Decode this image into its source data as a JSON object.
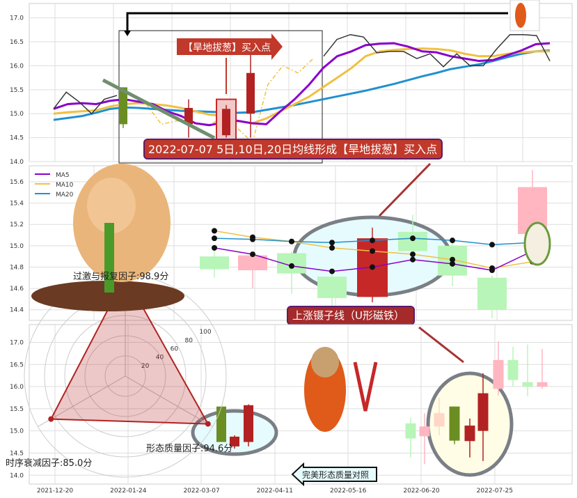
{
  "chart_data": [
    {
      "type": "line",
      "panel": "top",
      "ylim": [
        14.0,
        17.3
      ],
      "yticks": [
        "14.0",
        "14.5",
        "15.0",
        "15.5",
        "16.0",
        "16.5",
        "17.0"
      ],
      "series": [
        {
          "key": "ma5",
          "color": "#8800cc",
          "values": [
            15.1,
            15.2,
            15.22,
            15.2,
            15.27,
            15.3,
            15.25,
            15.2,
            15.05,
            14.95,
            14.8,
            14.76,
            14.82,
            14.85,
            14.8,
            14.78,
            15.05,
            15.3,
            15.6,
            15.95,
            16.2,
            16.3,
            16.43,
            16.46,
            16.47,
            16.4,
            16.3,
            16.28,
            16.2,
            16.15,
            16.1,
            16.12,
            16.22,
            16.32,
            16.45,
            16.47
          ]
        },
        {
          "key": "ma10",
          "color": "#f0c040",
          "values": [
            15.0,
            15.03,
            15.05,
            15.07,
            15.15,
            15.2,
            15.22,
            15.2,
            15.17,
            15.12,
            15.05,
            14.98,
            14.95,
            14.85,
            14.8,
            14.9,
            15.05,
            15.2,
            15.35,
            15.55,
            15.75,
            15.95,
            16.2,
            16.3,
            16.33,
            16.35,
            16.36,
            16.35,
            16.32,
            16.25,
            16.2,
            16.2,
            16.25,
            16.28,
            16.3,
            16.3
          ]
        },
        {
          "key": "ma20",
          "color": "#2090d0",
          "values": [
            14.87,
            14.91,
            14.95,
            15.02,
            15.1,
            15.13,
            15.12,
            15.1,
            15.08,
            15.06,
            15.05,
            15.04,
            15.03,
            15.02,
            15.03,
            15.08,
            15.13,
            15.18,
            15.24,
            15.3,
            15.36,
            15.42,
            15.48,
            15.55,
            15.62,
            15.7,
            15.78,
            15.85,
            15.93,
            15.98,
            16.03,
            16.1,
            16.18,
            16.25,
            16.3,
            16.32
          ]
        },
        {
          "key": "close",
          "color": "#333333",
          "segments": [
            [
              15.1,
              15.45,
              15.25,
              15.0,
              15.3,
              15.38
            ],
            [
              16.2,
              16.55,
              16.65,
              16.6,
              16.27,
              16.3,
              16.3,
              16.15,
              16.25,
              15.98,
              16.25,
              16.0,
              16.0,
              16.35,
              16.65,
              16.65,
              16.63,
              16.1
            ]
          ]
        }
      ],
      "dashed": [
        15.2,
        14.78,
        14.85,
        14.8,
        14.75,
        14.9,
        14.7,
        14.4,
        15.6,
        16.0,
        15.85,
        16.15
      ],
      "candles": [
        {
          "o": 15.55,
          "c": 14.78,
          "h": 15.55,
          "l": 14.7,
          "color": "#6b8e23"
        },
        {
          "o": 14.78,
          "c": 15.12,
          "h": 15.3,
          "l": 14.5,
          "color": "#b22222"
        },
        {
          "o": 14.55,
          "c": 15.1,
          "h": 15.18,
          "l": 14.5,
          "color": "#b22222"
        },
        {
          "o": 15.0,
          "c": 15.85,
          "h": 16.3,
          "l": 14.5,
          "color": "#b22222"
        }
      ],
      "annotation_arrow": "【旱地拔葱】买入点",
      "annotation_box": "2022-07-07 5日,10日,20日均线形成【旱地拔葱】买入点"
    },
    {
      "type": "bar",
      "panel": "middle",
      "ylim": [
        14.3,
        15.75
      ],
      "yticks": [
        "14.4",
        "14.6",
        "14.8",
        "15.0",
        "15.2",
        "15.4",
        "15.6"
      ],
      "legend": {
        "position": "top-left",
        "entries": [
          "MA5",
          "MA10",
          "MA20"
        ]
      },
      "candles": [
        {
          "o": 14.9,
          "c": 14.78,
          "h": 14.98,
          "l": 14.7,
          "color": "#b8f5b8"
        },
        {
          "o": 14.77,
          "c": 14.91,
          "h": 14.92,
          "l": 14.6,
          "color": "#ffb6c1"
        },
        {
          "o": 14.93,
          "c": 14.74,
          "h": 14.95,
          "l": 14.55,
          "color": "#b8f5b8"
        },
        {
          "o": 14.71,
          "c": 14.51,
          "h": 14.75,
          "l": 14.4,
          "color": "#b8f5b8"
        },
        {
          "o": 14.52,
          "c": 15.07,
          "h": 15.17,
          "l": 14.47,
          "color": "#c62828"
        },
        {
          "o": 15.13,
          "c": 14.95,
          "h": 15.29,
          "l": 14.85,
          "color": "#b8f5b8"
        },
        {
          "o": 15.0,
          "c": 14.72,
          "h": 15.05,
          "l": 14.62,
          "color": "#b8f5b8"
        },
        {
          "o": 14.7,
          "c": 14.4,
          "h": 14.72,
          "l": 14.32,
          "color": "#b8f5b8"
        },
        {
          "o": 15.11,
          "c": 15.55,
          "h": 15.71,
          "l": 15.0,
          "color": "#ffb6c1"
        }
      ],
      "ma5": [
        14.98,
        14.92,
        14.81,
        14.76,
        14.8,
        14.87,
        14.83,
        14.77,
        14.95
      ],
      "ma10": [
        15.14,
        15.08,
        15.04,
        14.98,
        14.95,
        14.92,
        14.87,
        14.79,
        14.85
      ],
      "ma20": [
        15.07,
        15.06,
        15.04,
        15.03,
        15.05,
        15.07,
        15.05,
        15.01,
        15.03
      ],
      "annotation_box": "上涨镊子线（U形磁铁）"
    },
    {
      "type": "bar",
      "panel": "bottom",
      "ylim": [
        13.8,
        17.4
      ],
      "yticks": [
        "14.0",
        "14.5",
        "15.0",
        "15.5",
        "16.0",
        "16.5",
        "17.0"
      ],
      "xticks": [
        "2021-12-20",
        "2022-01-24",
        "2022-03-07",
        "2022-04-11",
        "2022-05-16",
        "2022-06-20",
        "2022-07-25"
      ],
      "left_candles": [
        {
          "o": 15.55,
          "c": 14.75,
          "h": 15.55,
          "l": 14.75,
          "color": "#6b8e23"
        },
        {
          "o": 14.65,
          "c": 14.87,
          "h": 14.9,
          "l": 14.6,
          "color": "#b22222"
        },
        {
          "o": 14.75,
          "c": 15.58,
          "h": 15.6,
          "l": 14.65,
          "color": "#b22222"
        }
      ],
      "right_candles": [
        {
          "o": 15.17,
          "c": 14.83,
          "h": 15.3,
          "l": 14.4,
          "color": "#b8f5b8"
        },
        {
          "o": 14.88,
          "c": 15.1,
          "h": 15.4,
          "l": 14.25,
          "color": "#ffb6c1"
        },
        {
          "o": 15.1,
          "c": 15.4,
          "h": 15.75,
          "l": 14.9,
          "color": "#ffd6c8"
        },
        {
          "o": 15.55,
          "c": 14.78,
          "h": 15.55,
          "l": 14.7,
          "color": "#6b8e23"
        },
        {
          "o": 14.77,
          "c": 15.12,
          "h": 15.28,
          "l": 14.4,
          "color": "#b22222"
        },
        {
          "o": 15.0,
          "c": 15.85,
          "h": 16.3,
          "l": 14.32,
          "color": "#b22222"
        },
        {
          "o": 15.95,
          "c": 16.6,
          "h": 17.02,
          "l": 15.8,
          "color": "#ffb6c1"
        },
        {
          "o": 16.6,
          "c": 16.15,
          "h": 16.9,
          "l": 16.0,
          "color": "#b8f5b8"
        },
        {
          "o": 16.1,
          "c": 16.0,
          "h": 16.95,
          "l": 15.78,
          "color": "#b8f5b8"
        },
        {
          "o": 16.0,
          "c": 16.1,
          "h": 16.85,
          "l": 15.95,
          "color": "#ffb6c1"
        }
      ],
      "annotation_arrow": "完美形态质量对照"
    },
    {
      "type": "radar",
      "rticks": [
        "20",
        "40",
        "60",
        "80",
        "100"
      ],
      "rmax": 100,
      "axes": [
        {
          "label": "过激与报复因子:98.9分",
          "value": 98.9
        },
        {
          "label": "时序衰减因子:85.0分",
          "value": 85.0
        },
        {
          "label": "形态质量因子:94.6分",
          "value": 94.6
        }
      ],
      "color": "#b22222"
    }
  ]
}
